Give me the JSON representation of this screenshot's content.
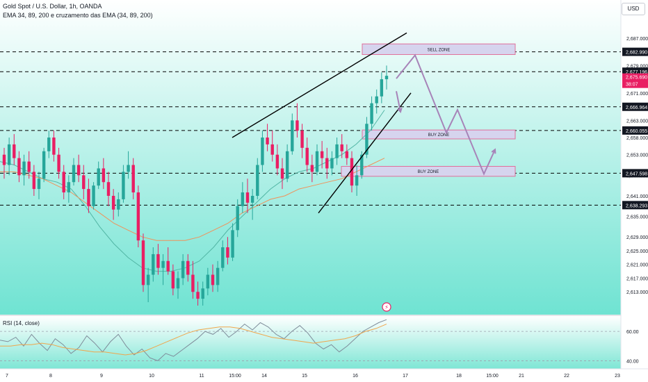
{
  "header": {
    "title": "Gold Spot / U.S. Dollar, 1h, OANDA",
    "indicator": "EMA 34, 89, 200 e cruzamento das EMA (34, 89, 200)"
  },
  "currency": "USD",
  "colors": {
    "chart_bg_top": "#ffffff",
    "chart_bg_bottom": "#6fe3d2",
    "candle_up": "#26a69a",
    "candle_down": "#e91e63",
    "ema_fast": "#52b6a5",
    "ema_slow": "#f0915a",
    "trendline": "#000000",
    "projection": "#a783b8",
    "zone_fill": "#d6d4ee",
    "zone_border": "#e06f9a",
    "rsi_line": "#7f8c9a",
    "rsi_ma": "#f0a64b"
  },
  "chart_data": {
    "type": "candlestick",
    "symbol": "Gold Spot / U.S. Dollar",
    "interval": "1h",
    "ylim": [
      2609,
      2690
    ],
    "ytick_labels": [
      "2,687.000",
      "2,679.000",
      "2,671.000",
      "2,663.000",
      "2,658.000",
      "2,653.000",
      "2,647.000",
      "2,641.000",
      "2,635.000",
      "2,629.000",
      "2,625.000",
      "2,621.000",
      "2,617.000",
      "2,613.000"
    ],
    "xtick_labels": [
      "7",
      "8",
      "9",
      "10",
      "11",
      "15:00",
      "14",
      "15",
      "16",
      "17",
      "18",
      "15:00",
      "21",
      "22",
      "23"
    ],
    "price_levels": [
      {
        "label": "2,682.990",
        "value": 2682.99
      },
      {
        "label": "2,677.196",
        "value": 2677.196
      },
      {
        "label": "2,666.964",
        "value": 2666.964
      },
      {
        "label": "2,660.055",
        "value": 2660.055
      },
      {
        "label": "2,647.598",
        "value": 2647.598
      },
      {
        "label": "2,638.293",
        "value": 2638.293
      }
    ],
    "last_price": {
      "label": "2,675.690",
      "countdown": "38:07",
      "value": 2675.69
    },
    "zones": [
      {
        "label": "SELL ZONE",
        "top": 2685.3,
        "bottom": 2682.2
      },
      {
        "label": "BUY ZONE",
        "top": 2660.2,
        "bottom": 2657.6
      },
      {
        "label": "BUY ZONE",
        "top": 2649.6,
        "bottom": 2646.7
      }
    ],
    "ohlc": [
      [
        2653,
        2655,
        2646,
        2650
      ],
      [
        2650,
        2658,
        2647,
        2656
      ],
      [
        2656,
        2659,
        2650,
        2652
      ],
      [
        2652,
        2654,
        2645,
        2647
      ],
      [
        2647,
        2653,
        2644,
        2651
      ],
      [
        2651,
        2654,
        2646,
        2648
      ],
      [
        2648,
        2650,
        2641,
        2643
      ],
      [
        2643,
        2648,
        2640,
        2646
      ],
      [
        2646,
        2655,
        2645,
        2654
      ],
      [
        2654,
        2660,
        2652,
        2658
      ],
      [
        2658,
        2660,
        2651,
        2653
      ],
      [
        2653,
        2655,
        2646,
        2648
      ],
      [
        2648,
        2650,
        2640,
        2642
      ],
      [
        2642,
        2647,
        2639,
        2645
      ],
      [
        2645,
        2652,
        2644,
        2650
      ],
      [
        2650,
        2653,
        2645,
        2647
      ],
      [
        2647,
        2650,
        2640,
        2643
      ],
      [
        2643,
        2646,
        2636,
        2638
      ],
      [
        2638,
        2645,
        2637,
        2644
      ],
      [
        2644,
        2651,
        2643,
        2649
      ],
      [
        2649,
        2652,
        2643,
        2645
      ],
      [
        2645,
        2648,
        2638,
        2641
      ],
      [
        2641,
        2643,
        2634,
        2637
      ],
      [
        2637,
        2642,
        2635,
        2640
      ],
      [
        2640,
        2650,
        2639,
        2648
      ],
      [
        2648,
        2654,
        2646,
        2650
      ],
      [
        2650,
        2652,
        2640,
        2642
      ],
      [
        2642,
        2644,
        2626,
        2628
      ],
      [
        2628,
        2630,
        2613,
        2615
      ],
      [
        2615,
        2620,
        2610,
        2618
      ],
      [
        2618,
        2626,
        2616,
        2624
      ],
      [
        2624,
        2627,
        2618,
        2620
      ],
      [
        2620,
        2624,
        2615,
        2622
      ],
      [
        2622,
        2626,
        2618,
        2619
      ],
      [
        2619,
        2621,
        2612,
        2614
      ],
      [
        2614,
        2619,
        2611,
        2617
      ],
      [
        2617,
        2624,
        2615,
        2622
      ],
      [
        2622,
        2624,
        2616,
        2618
      ],
      [
        2618,
        2622,
        2611,
        2613
      ],
      [
        2613,
        2616,
        2609,
        2611
      ],
      [
        2611,
        2616,
        2609,
        2614
      ],
      [
        2614,
        2620,
        2612,
        2618
      ],
      [
        2618,
        2621,
        2613,
        2615
      ],
      [
        2615,
        2622,
        2613,
        2620
      ],
      [
        2620,
        2628,
        2619,
        2626
      ],
      [
        2626,
        2629,
        2621,
        2623
      ],
      [
        2623,
        2633,
        2622,
        2631
      ],
      [
        2631,
        2640,
        2629,
        2638
      ],
      [
        2638,
        2645,
        2636,
        2642
      ],
      [
        2642,
        2646,
        2636,
        2639
      ],
      [
        2639,
        2643,
        2634,
        2641
      ],
      [
        2641,
        2652,
        2640,
        2650
      ],
      [
        2650,
        2660,
        2648,
        2658
      ],
      [
        2658,
        2662,
        2654,
        2656
      ],
      [
        2656,
        2660,
        2651,
        2653
      ],
      [
        2653,
        2656,
        2647,
        2649
      ],
      [
        2649,
        2652,
        2643,
        2646
      ],
      [
        2646,
        2656,
        2645,
        2654
      ],
      [
        2654,
        2665,
        2653,
        2663
      ],
      [
        2663,
        2668,
        2658,
        2660
      ],
      [
        2660,
        2662,
        2652,
        2655
      ],
      [
        2655,
        2658,
        2648,
        2650
      ],
      [
        2650,
        2653,
        2645,
        2648
      ],
      [
        2648,
        2656,
        2647,
        2654
      ],
      [
        2654,
        2657,
        2649,
        2652
      ],
      [
        2652,
        2655,
        2646,
        2649
      ],
      [
        2649,
        2654,
        2647,
        2652
      ],
      [
        2652,
        2658,
        2650,
        2656
      ],
      [
        2656,
        2659,
        2652,
        2654
      ],
      [
        2654,
        2656,
        2650,
        2652
      ],
      [
        2652,
        2654,
        2642,
        2644
      ],
      [
        2644,
        2650,
        2641,
        2647
      ],
      [
        2647,
        2654,
        2646,
        2653
      ],
      [
        2653,
        2664,
        2652,
        2662
      ],
      [
        2662,
        2670,
        2660,
        2668
      ],
      [
        2668,
        2672,
        2665,
        2670
      ],
      [
        2670,
        2677,
        2668,
        2675
      ],
      [
        2675,
        2679,
        2672,
        2676
      ]
    ],
    "ema_fast": [
      2651,
      2650,
      2648,
      2646,
      2645,
      2643,
      2638,
      2632,
      2627,
      2623,
      2620,
      2619,
      2619,
      2620,
      2622,
      2626,
      2631,
      2635,
      2639,
      2643,
      2646,
      2648,
      2649,
      2651,
      2653,
      2656,
      2660,
      2666
    ],
    "ema_slow": [
      2648,
      2648,
      2647,
      2646,
      2644,
      2642,
      2639,
      2636,
      2633,
      2631,
      2629,
      2628,
      2628,
      2628,
      2629,
      2631,
      2633,
      2636,
      2638,
      2640,
      2641,
      2643,
      2644,
      2645,
      2646,
      2648,
      2650,
      2652
    ],
    "trendlines": [
      {
        "from": [
          2658,
          2659
        ],
        "to": [
          2688.5,
          2688.5
        ]
      },
      {
        "from": [
          2636,
          2636
        ],
        "to": [
          2671,
          2671
        ]
      }
    ],
    "projection_path": [
      2675.2,
      2682.0,
      2664.2,
      2659.4,
      2666.1,
      2647.4,
      2654.5
    ],
    "rsi": {
      "label": "RSI (14, close)",
      "ylim": [
        35,
        70
      ],
      "ytick_labels": [
        "60.00",
        "40.00"
      ],
      "values": [
        54,
        53,
        56,
        50,
        58,
        52,
        47,
        55,
        51,
        45,
        49,
        57,
        52,
        46,
        53,
        58,
        50,
        44,
        48,
        42,
        40,
        45,
        43,
        47,
        51,
        55,
        60,
        58,
        62,
        56,
        60,
        65,
        61,
        66,
        63,
        58,
        55,
        60,
        64,
        59,
        52,
        48,
        51,
        46,
        50,
        55,
        60,
        63,
        66,
        68
      ],
      "ma": [
        50,
        50,
        51,
        51,
        52,
        51,
        49,
        48,
        47,
        46,
        46,
        45,
        44,
        45,
        47,
        50,
        53,
        56,
        59,
        61,
        62,
        63,
        63,
        62,
        60,
        58,
        56,
        55,
        54,
        53,
        52,
        53,
        54,
        55,
        57,
        60,
        62,
        65
      ]
    }
  }
}
